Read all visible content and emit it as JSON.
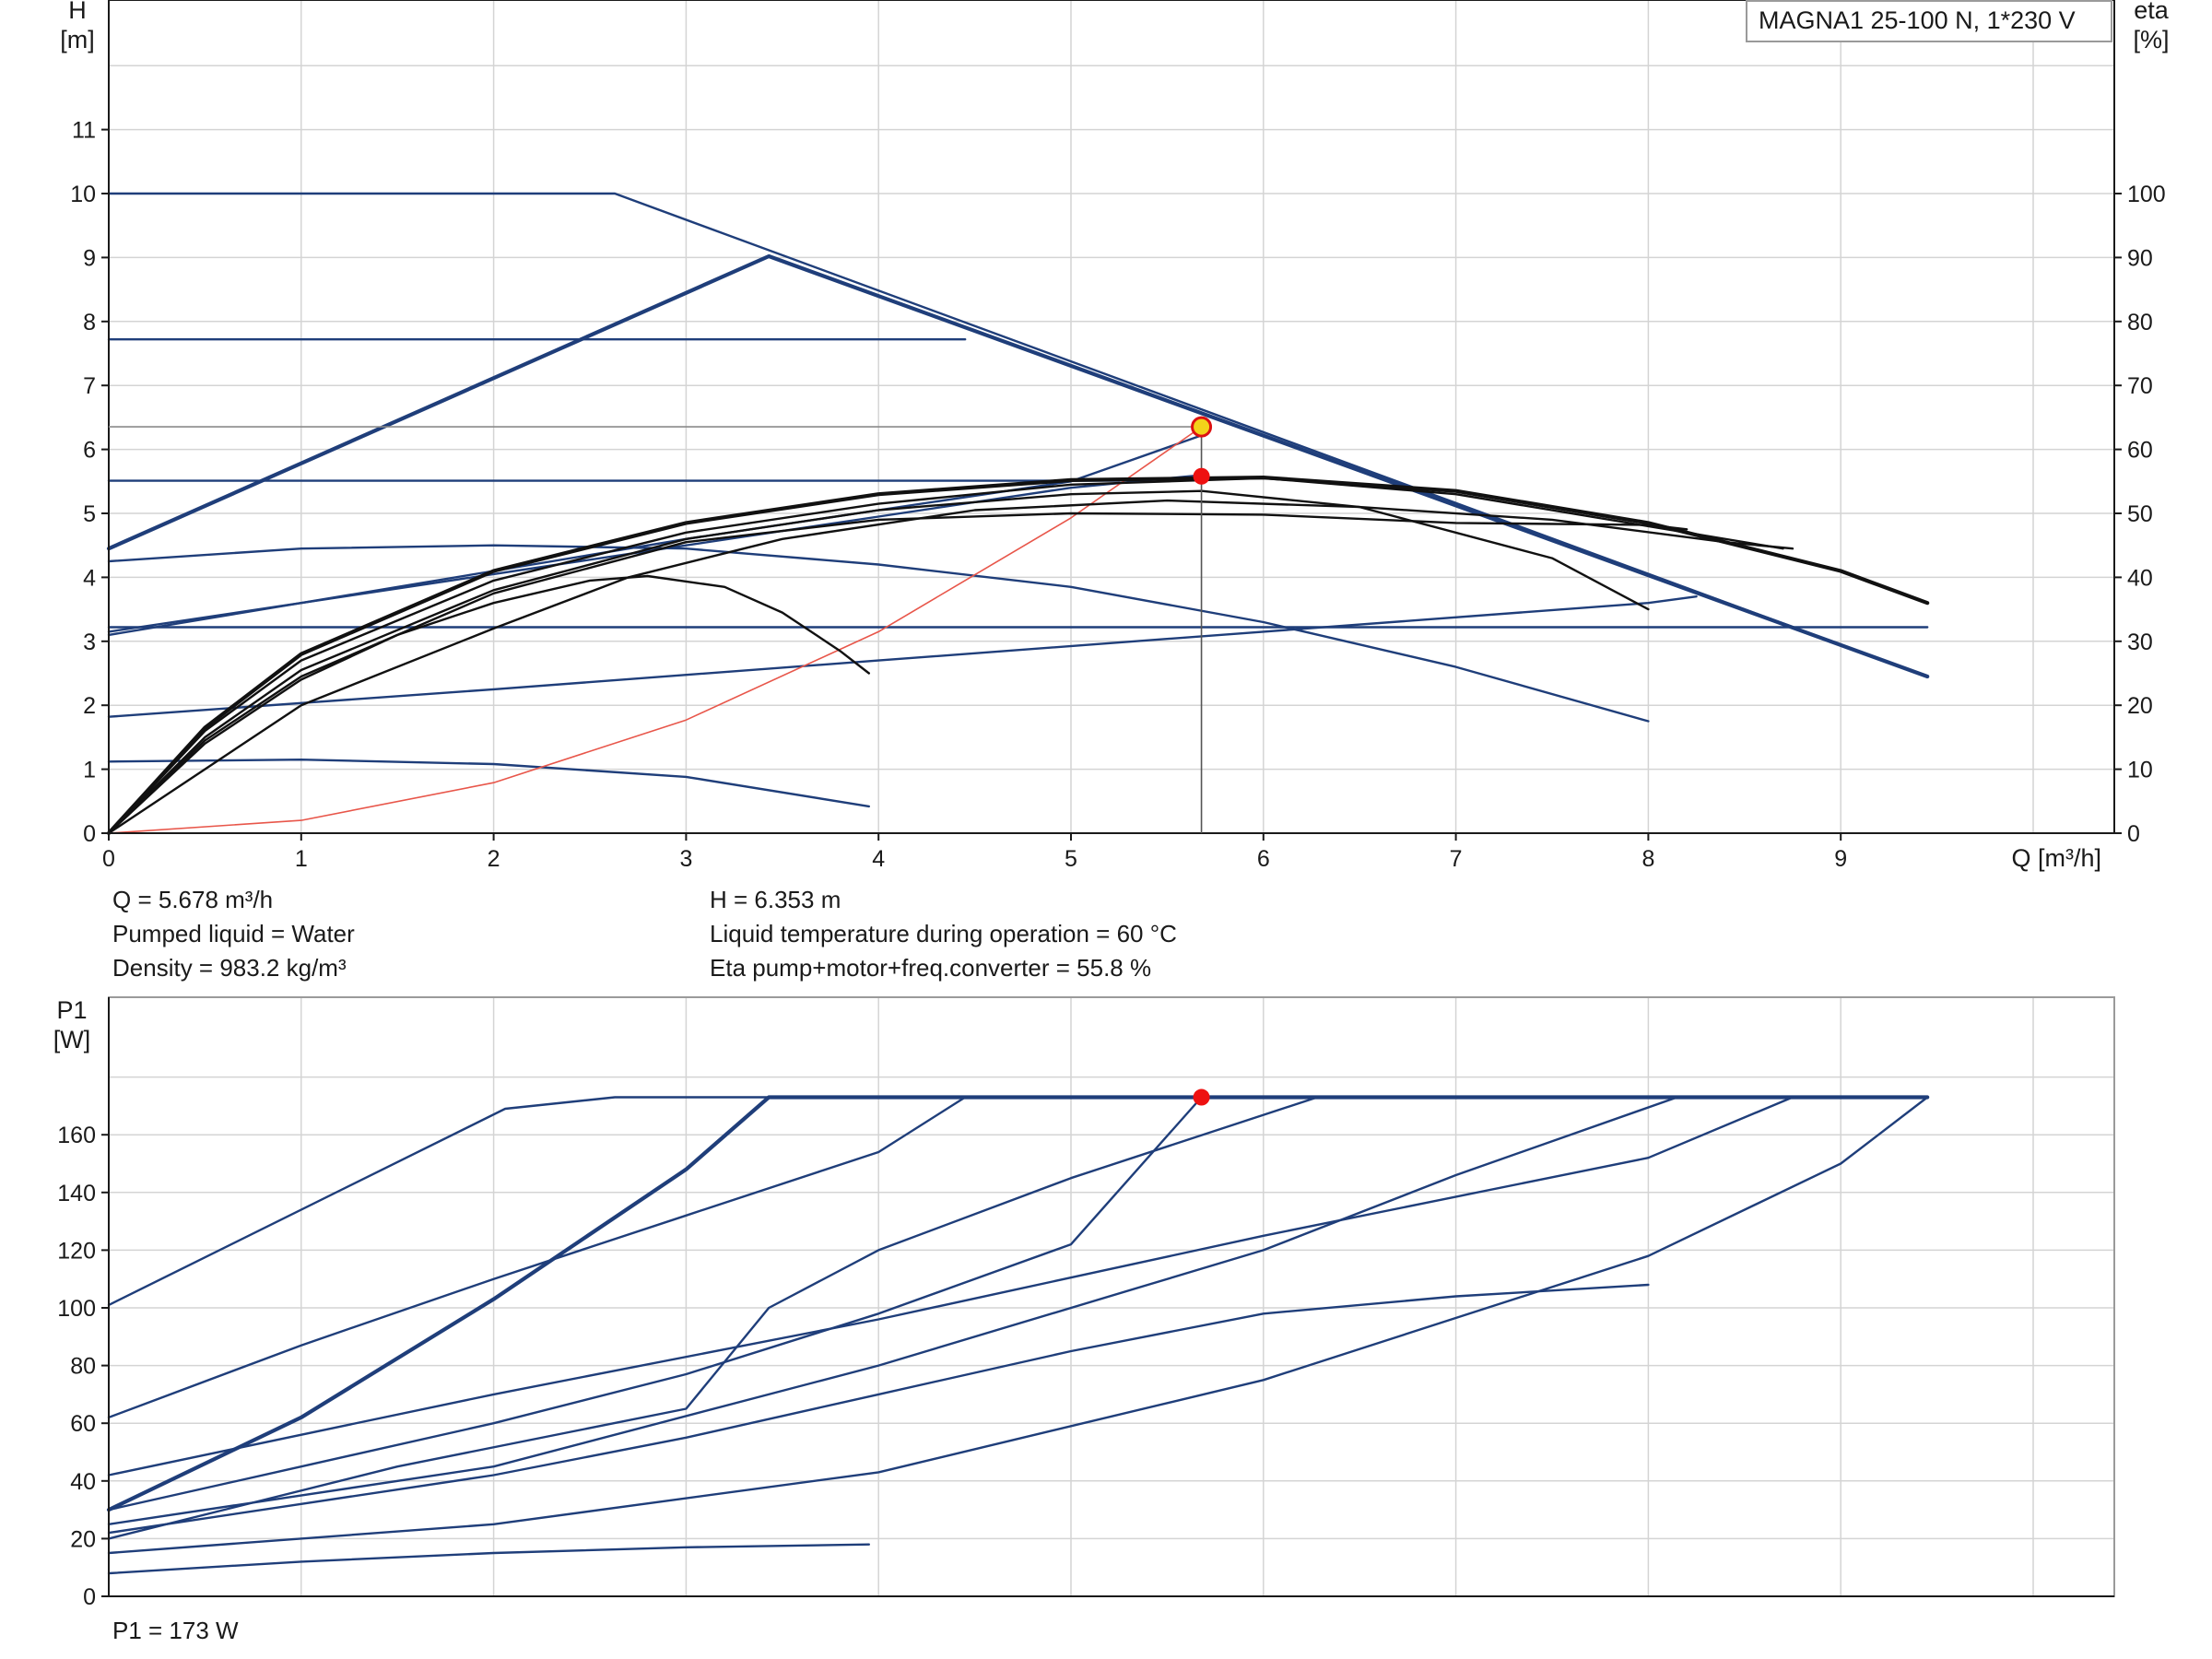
{
  "chart_data": [
    {
      "type": "line",
      "title": "",
      "legend": {
        "text": "MAGNA1 25-100 N, 1*230 V",
        "placement": "top-right"
      },
      "xlabel": "Q [m³/h]",
      "ylabel": "H\n[m]",
      "y2label": "eta\n[%]",
      "xlim": [
        0,
        10.4
      ],
      "ylim": [
        0,
        12.5
      ],
      "y2lim": [
        0,
        125
      ],
      "xticks": [
        0,
        1,
        2,
        3,
        4,
        5,
        6,
        7,
        8,
        9
      ],
      "yticks": [
        0,
        1,
        2,
        3,
        4,
        5,
        6,
        7,
        8,
        9,
        10,
        11
      ],
      "y2ticks": [
        0,
        10,
        20,
        30,
        40,
        50,
        60,
        70,
        80,
        90,
        100
      ],
      "grid": true,
      "operating_point": {
        "q": 5.678,
        "h": 6.353,
        "eta": 55.8
      },
      "series": [
        {
          "group": "head",
          "kind": "curve",
          "points": [
            [
              0,
              10
            ],
            [
              2.63,
              10
            ],
            [
              9.45,
              2.45
            ]
          ]
        },
        {
          "group": "head",
          "kind": "curve-bold",
          "points": [
            [
              0,
              4.45
            ],
            [
              3.43,
              9.02
            ],
            [
              9.45,
              2.45
            ]
          ]
        },
        {
          "group": "head",
          "kind": "curve",
          "points": [
            [
              0,
              7.72
            ],
            [
              4.45,
              7.72
            ]
          ]
        },
        {
          "group": "head",
          "kind": "curve",
          "points": [
            [
              0,
              5.51
            ],
            [
              5.25,
              5.51
            ]
          ]
        },
        {
          "group": "head",
          "kind": "curve",
          "points": [
            [
              0,
              3.22
            ],
            [
              9.45,
              3.22
            ]
          ]
        },
        {
          "group": "head",
          "kind": "curve",
          "points": [
            [
              0,
              4.25
            ],
            [
              1,
              4.45
            ],
            [
              2,
              4.5
            ],
            [
              3,
              4.45
            ],
            [
              4,
              4.2
            ],
            [
              5,
              3.85
            ],
            [
              6,
              3.3
            ],
            [
              7,
              2.6
            ],
            [
              8,
              1.75
            ]
          ]
        },
        {
          "group": "head",
          "kind": "curve",
          "points": [
            [
              0,
              1.12
            ],
            [
              1,
              1.15
            ],
            [
              2,
              1.08
            ],
            [
              3,
              0.88
            ],
            [
              3.95,
              0.42
            ]
          ]
        },
        {
          "group": "head",
          "kind": "curve",
          "points": [
            [
              0,
              3.15
            ],
            [
              1,
              3.6
            ],
            [
              2,
              4.05
            ],
            [
              3,
              4.5
            ],
            [
              4,
              4.95
            ],
            [
              5,
              5.4
            ],
            [
              5.68,
              5.6
            ]
          ]
        },
        {
          "group": "head",
          "kind": "curve",
          "points": [
            [
              0,
              1.82
            ],
            [
              2,
              2.25
            ],
            [
              4,
              2.7
            ],
            [
              6,
              3.15
            ],
            [
              8,
              3.6
            ],
            [
              8.25,
              3.7
            ]
          ]
        },
        {
          "group": "head",
          "kind": "curve",
          "points": [
            [
              0,
              3.1
            ],
            [
              1,
              3.6
            ],
            [
              2,
              4.1
            ],
            [
              3,
              4.6
            ],
            [
              4,
              5.05
            ],
            [
              5,
              5.5
            ],
            [
              5.68,
              6.22
            ]
          ]
        },
        {
          "group": "system",
          "kind": "system",
          "points": [
            [
              0,
              0
            ],
            [
              1,
              0.2
            ],
            [
              2,
              0.79
            ],
            [
              3,
              1.77
            ],
            [
              4,
              3.15
            ],
            [
              5,
              4.93
            ],
            [
              5.678,
              6.353
            ]
          ]
        },
        {
          "group": "eta",
          "kind": "eta",
          "points": [
            [
              0,
              0
            ],
            [
              0.5,
              1.4
            ],
            [
              1,
              2.4
            ],
            [
              1.5,
              3.1
            ],
            [
              2,
              3.6
            ],
            [
              2.5,
              3.95
            ],
            [
              2.8,
              4.02
            ],
            [
              3.2,
              3.85
            ],
            [
              3.5,
              3.45
            ],
            [
              3.8,
              2.85
            ],
            [
              3.95,
              2.5
            ]
          ]
        },
        {
          "group": "eta",
          "kind": "eta",
          "points": [
            [
              0,
              0
            ],
            [
              0.5,
              1.5
            ],
            [
              1,
              2.55
            ],
            [
              2,
              3.8
            ],
            [
              3,
              4.6
            ],
            [
              4,
              5.05
            ],
            [
              5,
              5.3
            ],
            [
              5.68,
              5.35
            ],
            [
              6.5,
              5.1
            ],
            [
              7.5,
              4.3
            ],
            [
              8,
              3.5
            ]
          ]
        },
        {
          "group": "eta",
          "kind": "eta",
          "points": [
            [
              0,
              0
            ],
            [
              0.5,
              1.45
            ],
            [
              1,
              2.45
            ],
            [
              2,
              3.75
            ],
            [
              3,
              4.55
            ],
            [
              4,
              4.9
            ],
            [
              5,
              5.0
            ],
            [
              6,
              4.98
            ],
            [
              7,
              4.85
            ],
            [
              8,
              4.82
            ],
            [
              8.2,
              4.75
            ]
          ]
        },
        {
          "group": "eta",
          "kind": "eta",
          "points": [
            [
              0,
              0
            ],
            [
              0.5,
              1.6
            ],
            [
              1,
              2.7
            ],
            [
              2,
              3.95
            ],
            [
              3,
              4.7
            ],
            [
              4,
              5.15
            ],
            [
              5,
              5.45
            ],
            [
              6,
              5.55
            ],
            [
              7,
              5.3
            ],
            [
              8,
              4.8
            ],
            [
              8.7,
              4.45
            ]
          ]
        },
        {
          "group": "eta",
          "kind": "eta-bold",
          "points": [
            [
              0,
              0
            ],
            [
              0.5,
              1.65
            ],
            [
              1,
              2.8
            ],
            [
              2,
              4.1
            ],
            [
              3,
              4.85
            ],
            [
              4,
              5.3
            ],
            [
              5,
              5.52
            ],
            [
              6,
              5.56
            ],
            [
              7,
              5.35
            ],
            [
              8,
              4.85
            ],
            [
              9,
              4.1
            ],
            [
              9.45,
              3.6
            ]
          ]
        },
        {
          "group": "eta",
          "kind": "eta",
          "points": [
            [
              0,
              0
            ],
            [
              1,
              2.0
            ],
            [
              2,
              3.2
            ],
            [
              2.7,
              4.0
            ],
            [
              3.5,
              4.6
            ],
            [
              4.5,
              5.05
            ],
            [
              5.5,
              5.2
            ],
            [
              6.5,
              5.1
            ],
            [
              7.5,
              4.9
            ],
            [
              8.4,
              4.55
            ],
            [
              8.75,
              4.45
            ]
          ]
        }
      ]
    },
    {
      "type": "line",
      "title": "",
      "xlabel": "",
      "ylabel": "P1\n[W]",
      "xlim": [
        0,
        10.4
      ],
      "ylim": [
        0,
        180
      ],
      "yticks": [
        0,
        20,
        40,
        60,
        80,
        100,
        120,
        140,
        160
      ],
      "grid": true,
      "operating_point": {
        "q": 5.678,
        "p1": 173
      },
      "series": [
        {
          "kind": "curve",
          "points": [
            [
              0,
              101
            ],
            [
              2.06,
              169
            ],
            [
              2.63,
              173
            ],
            [
              9.45,
              173
            ]
          ]
        },
        {
          "kind": "curve-bold",
          "points": [
            [
              0,
              30
            ],
            [
              1,
              62
            ],
            [
              2,
              103
            ],
            [
              3,
              148
            ],
            [
              3.43,
              173
            ],
            [
              9.45,
              173
            ]
          ]
        },
        {
          "kind": "curve",
          "points": [
            [
              0,
              62
            ],
            [
              1,
              87
            ],
            [
              2,
              110
            ],
            [
              3,
              132
            ],
            [
              4,
              154
            ],
            [
              4.45,
              173
            ]
          ]
        },
        {
          "kind": "curve",
          "points": [
            [
              0,
              42
            ],
            [
              2,
              70
            ],
            [
              4,
              96
            ],
            [
              6,
              125
            ],
            [
              8,
              152
            ],
            [
              8.75,
              173
            ]
          ]
        },
        {
          "kind": "curve",
          "points": [
            [
              0,
              30
            ],
            [
              1,
              45
            ],
            [
              2,
              60
            ],
            [
              3,
              77
            ],
            [
              4,
              98
            ],
            [
              5,
              122
            ],
            [
              5.678,
              173
            ]
          ]
        },
        {
          "kind": "curve",
          "points": [
            [
              0,
              25
            ],
            [
              2,
              45
            ],
            [
              4,
              80
            ],
            [
              6,
              120
            ],
            [
              7,
              146
            ],
            [
              8.15,
              173
            ]
          ]
        },
        {
          "kind": "curve",
          "points": [
            [
              0,
              22
            ],
            [
              1,
              32
            ],
            [
              2,
              42
            ],
            [
              3,
              55
            ],
            [
              4,
              70
            ],
            [
              5,
              85
            ],
            [
              6,
              98
            ],
            [
              7,
              104
            ],
            [
              8,
              108
            ]
          ]
        },
        {
          "kind": "curve",
          "points": [
            [
              0,
              15
            ],
            [
              2,
              25
            ],
            [
              4,
              43
            ],
            [
              6,
              75
            ],
            [
              8,
              118
            ],
            [
              9,
              150
            ],
            [
              9.45,
              173
            ]
          ]
        },
        {
          "kind": "curve",
          "points": [
            [
              0,
              8
            ],
            [
              1,
              12
            ],
            [
              2,
              15
            ],
            [
              3,
              17
            ],
            [
              3.95,
              18
            ]
          ]
        },
        {
          "kind": "curve",
          "points": [
            [
              0,
              20
            ],
            [
              1.5,
              45
            ],
            [
              3,
              65
            ],
            [
              3.43,
              100
            ],
            [
              4,
              120
            ],
            [
              5,
              145
            ],
            [
              6.28,
              173
            ]
          ]
        }
      ]
    }
  ],
  "readout": {
    "q": "Q = 5.678 m³/h",
    "liquid": "Pumped liquid = Water",
    "density": "Density = 983.2 kg/m³",
    "h": "H = 6.353 m",
    "temperature": "Liquid temperature during operation = 60 °C",
    "eta": "Eta pump+motor+freq.converter = 55.8 %",
    "p1": "P1 = 173 W"
  },
  "colors": {
    "curve": "#1f3e7a",
    "eta": "#111111",
    "system": "#e8564a",
    "point": "#ee1111",
    "point_ring": "#f3d21a",
    "grid": "#d4d4d4",
    "axis": "#1a1a1a"
  }
}
